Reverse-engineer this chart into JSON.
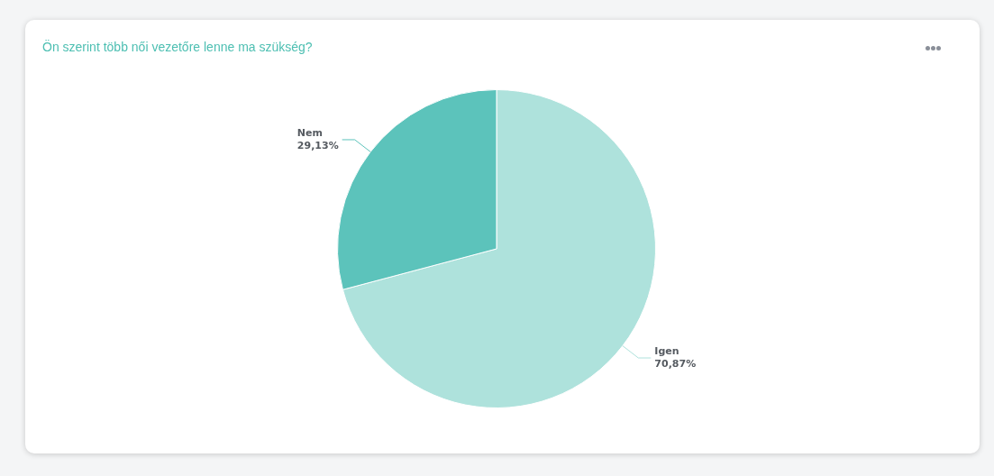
{
  "chart_data": {
    "type": "pie",
    "title": "Ön szerint több női vezetőre lenne ma szükség?",
    "categories": [
      "Igen",
      "Nem"
    ],
    "values": [
      70.87,
      29.13
    ],
    "colors": [
      "#aee2dc",
      "#5cc3bb"
    ],
    "value_labels": [
      "70,87%",
      "29,13%"
    ],
    "legend": false
  }
}
